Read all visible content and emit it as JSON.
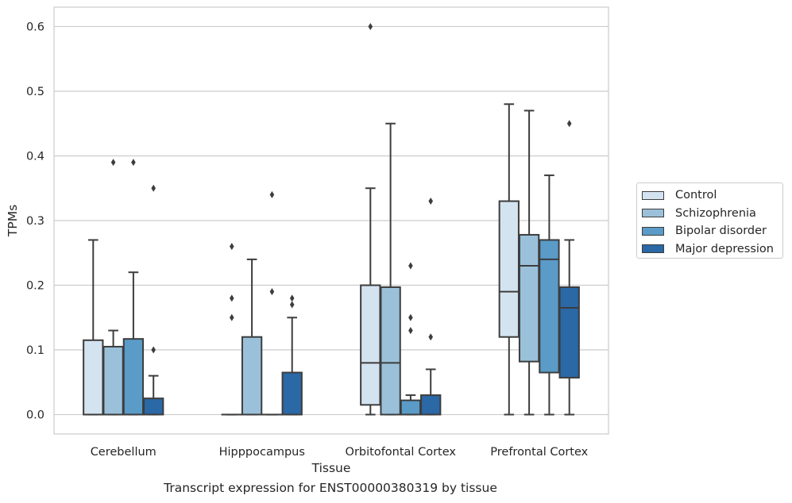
{
  "caption": "Transcript expression for ENST00000380319 by tissue",
  "chart_data": {
    "type": "box",
    "xlabel": "Tissue",
    "ylabel": "TPMs",
    "ylim": [
      -0.03,
      0.63
    ],
    "yticks": [
      "0.0",
      "0.1",
      "0.2",
      "0.3",
      "0.4",
      "0.5",
      "0.6"
    ],
    "grid": "horizontal",
    "legend_position": "right",
    "categories": [
      "Cerebellum",
      "Hipppocampus",
      "Orbitofontal Cortex",
      "Prefrontal Cortex"
    ],
    "series": [
      {
        "name": "Control",
        "color": "#d4e3f0",
        "boxes": [
          {
            "whisker_low": 0,
            "q1": 0,
            "median": 0,
            "q3": 0.115,
            "whisker_high": 0.27,
            "outliers": []
          },
          {
            "whisker_low": 0,
            "q1": 0,
            "median": 0,
            "q3": 0,
            "whisker_high": 0,
            "outliers": [
              0.26,
              0.18,
              0.15
            ]
          },
          {
            "whisker_low": 0,
            "q1": 0.015,
            "median": 0.08,
            "q3": 0.2,
            "whisker_high": 0.35,
            "outliers": [
              0.6
            ]
          },
          {
            "whisker_low": 0,
            "q1": 0.12,
            "median": 0.19,
            "q3": 0.33,
            "whisker_high": 0.48,
            "outliers": []
          }
        ]
      },
      {
        "name": "Schizophrenia",
        "color": "#9bc1da",
        "boxes": [
          {
            "whisker_low": 0,
            "q1": 0,
            "median": 0,
            "q3": 0.105,
            "whisker_high": 0.13,
            "outliers": [
              0.39
            ]
          },
          {
            "whisker_low": 0,
            "q1": 0,
            "median": 0,
            "q3": 0.12,
            "whisker_high": 0.24,
            "outliers": []
          },
          {
            "whisker_low": 0,
            "q1": 0,
            "median": 0.08,
            "q3": 0.197,
            "whisker_high": 0.45,
            "outliers": []
          },
          {
            "whisker_low": 0,
            "q1": 0.082,
            "median": 0.23,
            "q3": 0.278,
            "whisker_high": 0.47,
            "outliers": []
          }
        ]
      },
      {
        "name": "Bipolar disorder",
        "color": "#5a9bc8",
        "boxes": [
          {
            "whisker_low": 0,
            "q1": 0,
            "median": 0,
            "q3": 0.117,
            "whisker_high": 0.22,
            "outliers": [
              0.39
            ]
          },
          {
            "whisker_low": 0,
            "q1": 0,
            "median": 0,
            "q3": 0,
            "whisker_high": 0,
            "outliers": [
              0.34,
              0.19
            ]
          },
          {
            "whisker_low": 0,
            "q1": 0,
            "median": 0,
            "q3": 0.022,
            "whisker_high": 0.03,
            "outliers": [
              0.23,
              0.15,
              0.13
            ]
          },
          {
            "whisker_low": 0,
            "q1": 0.065,
            "median": 0.24,
            "q3": 0.27,
            "whisker_high": 0.37,
            "outliers": []
          }
        ]
      },
      {
        "name": "Major depression",
        "color": "#2a68a6",
        "boxes": [
          {
            "whisker_low": 0,
            "q1": 0,
            "median": 0,
            "q3": 0.025,
            "whisker_high": 0.06,
            "outliers": [
              0.35,
              0.1
            ]
          },
          {
            "whisker_low": 0,
            "q1": 0,
            "median": 0,
            "q3": 0.065,
            "whisker_high": 0.15,
            "outliers": [
              0.18,
              0.17
            ]
          },
          {
            "whisker_low": 0,
            "q1": 0,
            "median": 0,
            "q3": 0.03,
            "whisker_high": 0.07,
            "outliers": [
              0.33,
              0.12
            ]
          },
          {
            "whisker_low": 0,
            "q1": 0.057,
            "median": 0.165,
            "q3": 0.197,
            "whisker_high": 0.27,
            "outliers": [
              0.45
            ]
          }
        ]
      }
    ]
  }
}
